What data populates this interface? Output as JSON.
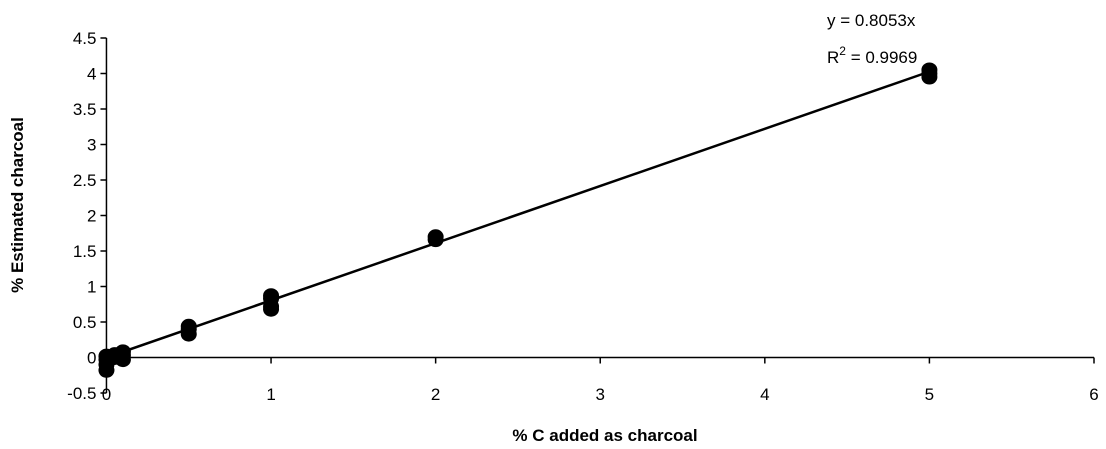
{
  "chart_data": {
    "type": "scatter",
    "xlabel": "% C added as charcoal",
    "ylabel": "% Estimated charcoal",
    "xlim": [
      -0.1,
      6
    ],
    "ylim": [
      -0.5,
      4.5
    ],
    "xticks": [
      0,
      1,
      2,
      3,
      4,
      5,
      6
    ],
    "yticks": [
      -0.5,
      0,
      0.5,
      1,
      1.5,
      2,
      2.5,
      3,
      3.5,
      4,
      4.5
    ],
    "grid": false,
    "points": [
      {
        "x": 0,
        "y": -0.18
      },
      {
        "x": 0,
        "y": -0.1
      },
      {
        "x": 0,
        "y": -0.03
      },
      {
        "x": 0,
        "y": 0.02
      },
      {
        "x": 0.05,
        "y": 0.0
      },
      {
        "x": 0.05,
        "y": 0.04
      },
      {
        "x": 0.1,
        "y": -0.03
      },
      {
        "x": 0.1,
        "y": 0.03
      },
      {
        "x": 0.1,
        "y": 0.08
      },
      {
        "x": 0.5,
        "y": 0.33
      },
      {
        "x": 0.5,
        "y": 0.4
      },
      {
        "x": 0.5,
        "y": 0.44
      },
      {
        "x": 1,
        "y": 0.68
      },
      {
        "x": 1,
        "y": 0.72
      },
      {
        "x": 1,
        "y": 0.83
      },
      {
        "x": 1,
        "y": 0.87
      },
      {
        "x": 2,
        "y": 1.66
      },
      {
        "x": 2,
        "y": 1.7
      },
      {
        "x": 5,
        "y": 3.95
      },
      {
        "x": 5,
        "y": 4.0
      },
      {
        "x": 5,
        "y": 4.05
      }
    ],
    "trendline": {
      "slope": 0.8053,
      "x_range": [
        0,
        5
      ]
    },
    "annotations": {
      "equation": "y = 0.8053x",
      "r2_prefix": "R",
      "r2_sup": "2",
      "r2_value": " = 0.9969"
    }
  }
}
